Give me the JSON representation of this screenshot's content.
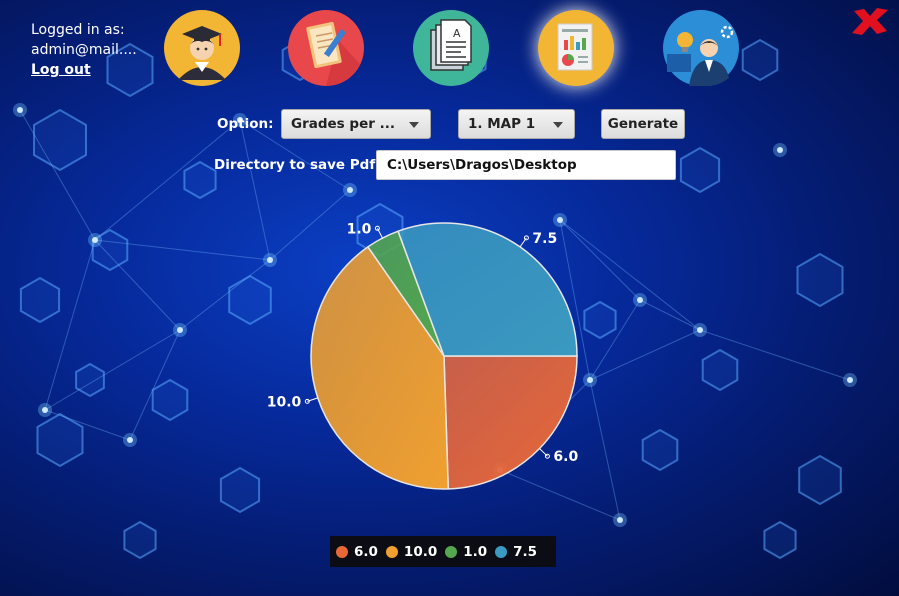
{
  "user": {
    "logged_in_label": "Logged in as:",
    "email": "admin@mail....",
    "logout_label": "Log out"
  },
  "nav": [
    {
      "name": "students-icon",
      "circle": "#f3b634"
    },
    {
      "name": "grades-notebook-icon",
      "circle": "#e8474b"
    },
    {
      "name": "documents-icon",
      "circle": "#3fb69a"
    },
    {
      "name": "reports-icon",
      "circle": "#f3b634",
      "active": true
    },
    {
      "name": "business-idea-icon",
      "circle": "#2c8ed6"
    }
  ],
  "form": {
    "option_label": "Option:",
    "option_value": "Grades per ...",
    "map_value": "1. MAP 1",
    "generate_label": "Generate",
    "directory_label": "Directory to save Pdf:",
    "directory_value": "C:\\Users\\Dragos\\Desktop"
  },
  "colors": {
    "close": "#e0101e",
    "orange_red": "#e8683a",
    "orange": "#f0a030",
    "green": "#55a84d",
    "blue": "#3b9ac0"
  },
  "chart_data": {
    "type": "pie",
    "start_angle_deg": 0,
    "slices": [
      {
        "label": "6.0",
        "value": 6.0,
        "color": "#e8683a"
      },
      {
        "label": "10.0",
        "value": 10.0,
        "color": "#f0a030"
      },
      {
        "label": "1.0",
        "value": 1.0,
        "color": "#55a84d"
      },
      {
        "label": "7.5",
        "value": 7.5,
        "color": "#3b9ac0"
      }
    ],
    "legend": [
      "6.0",
      "10.0",
      "1.0",
      "7.5"
    ],
    "legend_position": "bottom"
  }
}
